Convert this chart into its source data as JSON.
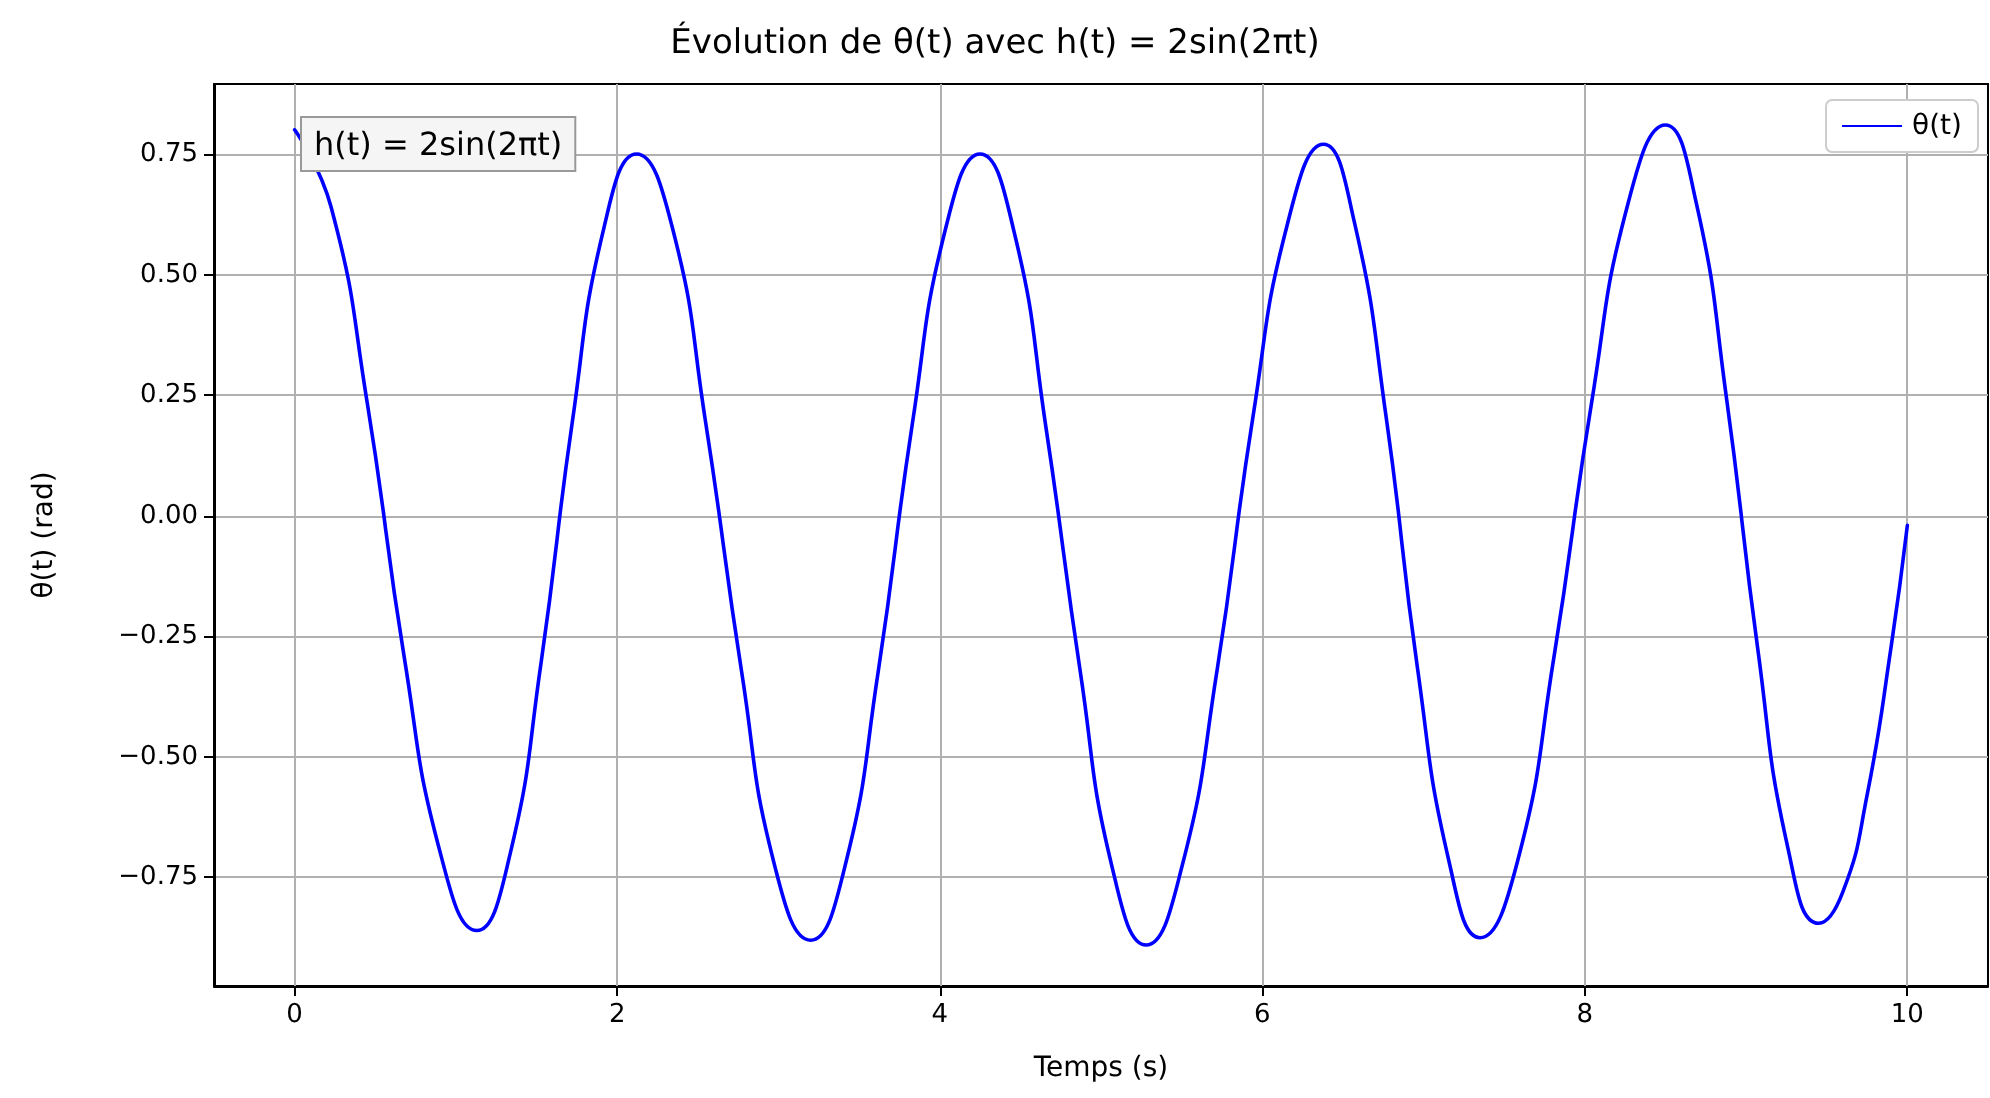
{
  "chart_data": {
    "type": "line",
    "title": "Évolution de θ(t) avec h(t) = 2sin(2πt)",
    "xlabel": "Temps (s)",
    "ylabel": "θ(t) (rad)",
    "annotations": [
      "h(t) = 2sin(2πt)"
    ],
    "series": [
      {
        "name": "θ(t)",
        "color": "#0000ff",
        "x": [
          0,
          0.226,
          0.452,
          0.678,
          0.904,
          1.13,
          1.33,
          1.53,
          1.72,
          1.92,
          2.12,
          2.34,
          2.55,
          2.77,
          2.98,
          3.2,
          3.41,
          3.62,
          3.83,
          4.04,
          4.25,
          4.46,
          4.66,
          4.87,
          5.07,
          5.28,
          5.5,
          5.72,
          5.94,
          6.16,
          6.38,
          6.57,
          6.77,
          6.96,
          7.16,
          7.35,
          7.58,
          7.81,
          8.04,
          8.27,
          8.5,
          8.69,
          8.88,
          9.07,
          9.26,
          9.45,
          9.6,
          9.75,
          9.9,
          10
        ],
        "values": [
          0.8,
          0.64,
          0.23,
          -0.29,
          -0.7,
          -0.86,
          -0.71,
          -0.3,
          0.19,
          0.6,
          0.75,
          0.6,
          0.19,
          -0.32,
          -0.73,
          -0.88,
          -0.73,
          -0.32,
          0.19,
          0.6,
          0.75,
          0.59,
          0.18,
          -0.32,
          -0.73,
          -0.89,
          -0.73,
          -0.32,
          0.2,
          0.61,
          0.77,
          0.61,
          0.2,
          -0.31,
          -0.72,
          -0.875,
          -0.72,
          -0.29,
          0.23,
          0.65,
          0.81,
          0.65,
          0.24,
          -0.27,
          -0.69,
          -0.845,
          -0.78,
          -0.58,
          -0.27,
          -0.02
        ]
      }
    ],
    "xlim": [
      -0.5,
      10.5
    ],
    "xticks": [
      0,
      2,
      4,
      6,
      8,
      10
    ],
    "ylim": [
      -0.975,
      0.895
    ],
    "yticks": [
      {
        "value": -0.75,
        "label": "−0.75"
      },
      {
        "value": -0.5,
        "label": "−0.50"
      },
      {
        "value": -0.25,
        "label": "−0.25"
      },
      {
        "value": 0,
        "label": "0.00"
      },
      {
        "value": 0.25,
        "label": "0.25"
      },
      {
        "value": 0.5,
        "label": "0.50"
      },
      {
        "value": 0.75,
        "label": "0.75"
      }
    ],
    "grid": true,
    "legend": "top right",
    "marker": "none",
    "line_style": "solid"
  }
}
